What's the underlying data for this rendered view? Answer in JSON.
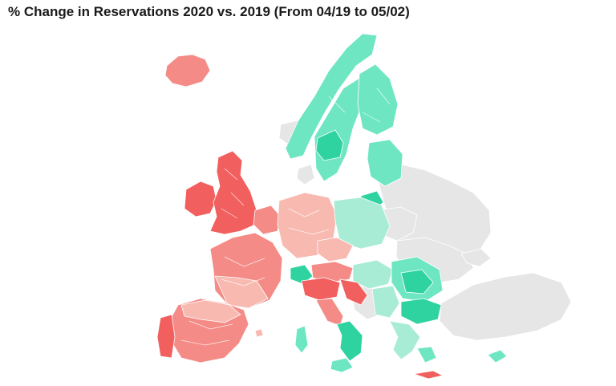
{
  "title": "% Change in Reservations 2020 vs. 2019 (From 04/19 to 05/02)",
  "colors": {
    "strong_decrease": "#f25f5f",
    "decrease": "#f48b86",
    "mild_decrease": "#f8b9b1",
    "mild_increase": "#a9ecd6",
    "increase": "#6ee6c1",
    "strong_increase": "#2ed3a0",
    "no_data": "#e6e6e6"
  }
}
